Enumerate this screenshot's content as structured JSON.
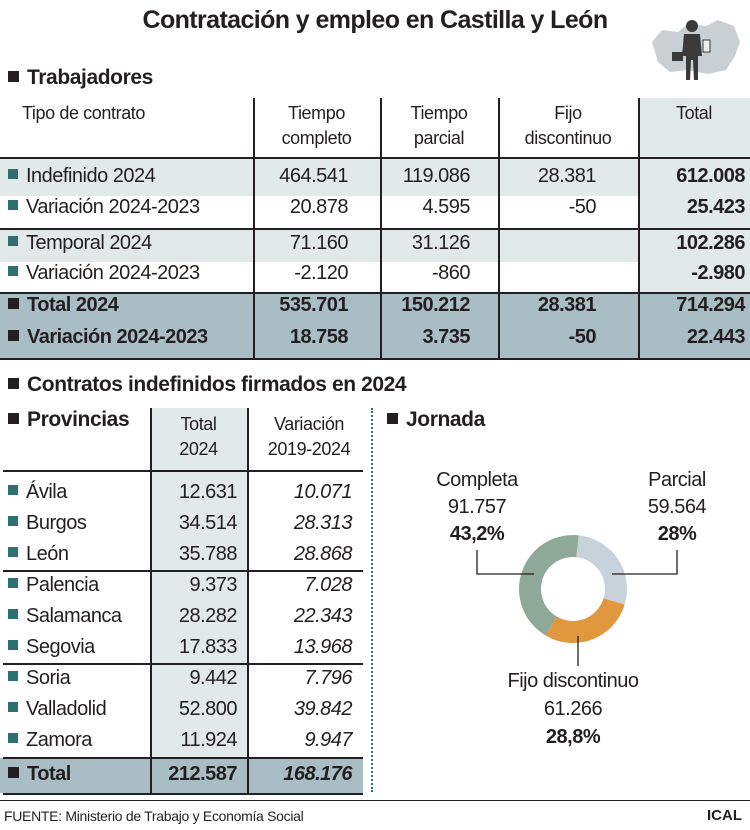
{
  "title": "Contratación y empleo en Castilla y León",
  "colors": {
    "light_band": "#e2eae9",
    "total_band": "#a9bdc4",
    "bullet": "#2e6f70",
    "completa": "#8fa999",
    "parcial": "#c8d2db",
    "fijo_discontinuo": "#e0973d"
  },
  "icon": "map-with-worker-icon",
  "trabajadores": {
    "heading": "Trabajadores",
    "headers": [
      "Tipo de contrato",
      "Tiempo completo",
      "Tiempo parcial",
      "Fijo discontinuo",
      "Total"
    ],
    "header_lines": [
      [
        "Tipo de contrato"
      ],
      [
        "Tiempo",
        "completo"
      ],
      [
        "Tiempo",
        "parcial"
      ],
      [
        "Fijo",
        "discontinuo"
      ],
      [
        "Total"
      ]
    ],
    "rows": [
      {
        "label": "Indefinido 2024",
        "values": [
          "464.541",
          "119.086",
          "28.381",
          "612.008"
        ]
      },
      {
        "label": "Variación 2024-2023",
        "values": [
          "20.878",
          "4.595",
          "-50",
          "25.423"
        ]
      },
      {
        "label": "Temporal 2024",
        "values": [
          "71.160",
          "31.126",
          "",
          "102.286"
        ]
      },
      {
        "label": "Variación 2024-2023",
        "values": [
          "-2.120",
          "-860",
          "",
          "-2.980"
        ]
      },
      {
        "label": "Total 2024",
        "values": [
          "535.701",
          "150.212",
          "28.381",
          "714.294"
        ]
      },
      {
        "label": "Variación 2024-2023",
        "values": [
          "18.758",
          "3.735",
          "-50",
          "22.443"
        ]
      }
    ]
  },
  "contratos": {
    "heading": "Contratos indefinidos firmados en 2024",
    "provincias": {
      "heading": "Provincias",
      "col1": [
        "Total",
        "2024"
      ],
      "col2": [
        "Variación",
        "2019-2024"
      ],
      "rows": [
        {
          "label": "Ávila",
          "total": "12.631",
          "var": "10.071"
        },
        {
          "label": "Burgos",
          "total": "34.514",
          "var": "28.313"
        },
        {
          "label": "León",
          "total": "35.788",
          "var": "28.868"
        },
        {
          "label": "Palencia",
          "total": "9.373",
          "var": "7.028"
        },
        {
          "label": "Salamanca",
          "total": "28.282",
          "var": "22.343"
        },
        {
          "label": "Segovia",
          "total": "17.833",
          "var": "13.968"
        },
        {
          "label": "Soria",
          "total": "9.442",
          "var": "7.796"
        },
        {
          "label": "Valladolid",
          "total": "52.800",
          "var": "39.842"
        },
        {
          "label": "Zamora",
          "total": "11.924",
          "var": "9.947"
        }
      ],
      "total": {
        "label": "Total",
        "total": "212.587",
        "var": "168.176"
      }
    }
  },
  "chart_data": {
    "type": "pie",
    "donut": true,
    "title": "Jornada",
    "slices": [
      {
        "name": "Parcial",
        "value": 59564,
        "value_label": "59.564",
        "percent_label": "28%",
        "color": "#c8d2db"
      },
      {
        "name": "Fijo discontinuo",
        "value": 61266,
        "value_label": "61.266",
        "percent_label": "28,8%",
        "color": "#e0973d"
      },
      {
        "name": "Completa",
        "value": 91757,
        "value_label": "91.757",
        "percent_label": "43,2%",
        "color": "#8fa999"
      }
    ]
  },
  "footer": {
    "source": "FUENTE: Ministerio de Trabajo y Economía Social",
    "credit": "ICAL"
  }
}
